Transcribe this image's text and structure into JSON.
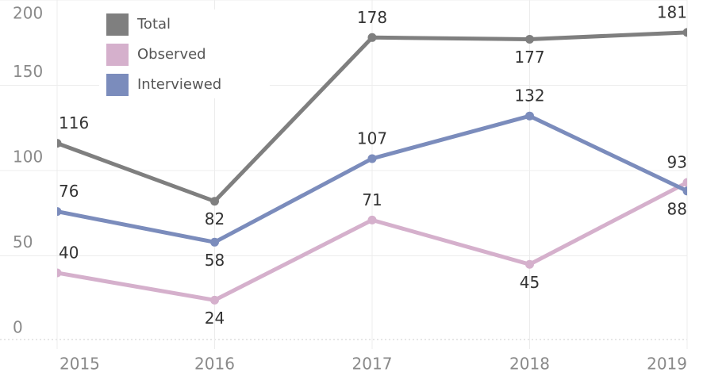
{
  "chart_data": {
    "type": "line",
    "x": [
      2015,
      2016,
      2017,
      2018,
      2019
    ],
    "series": [
      {
        "name": "Total",
        "color": "#7f7f7f",
        "values": [
          116,
          82,
          178,
          177,
          181
        ]
      },
      {
        "name": "Observed",
        "color": "#d5b0cc",
        "values": [
          40,
          24,
          71,
          45,
          93
        ]
      },
      {
        "name": "Interviewed",
        "color": "#7b8cbc",
        "values": [
          76,
          58,
          107,
          132,
          88
        ]
      }
    ],
    "xlim": [
      2015,
      2019
    ],
    "xticks": [
      2015,
      2016,
      2017,
      2018,
      2019
    ],
    "ylim": [
      0,
      200
    ],
    "yticks": [
      0,
      50,
      100,
      150,
      200
    ],
    "grid": true,
    "legend": "top-left"
  }
}
